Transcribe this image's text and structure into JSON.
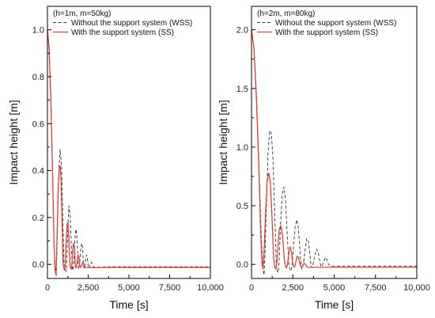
{
  "chart_data": [
    {
      "type": "line",
      "legend_title": "(h=1m, m=50kg)",
      "legend_position": "top-right",
      "xlabel": "Time [s]",
      "ylabel": "Impact height [m]",
      "xlim": [
        0,
        10000
      ],
      "ylim": [
        -0.06,
        1.1
      ],
      "xticks": [
        0,
        2500,
        5000,
        7500,
        10000
      ],
      "xtick_labels": [
        "0",
        "2,500",
        "5,000",
        "7,500",
        "10,000"
      ],
      "yticks": [
        0.0,
        0.2,
        0.4,
        0.6,
        0.8,
        1.0
      ],
      "ytick_labels": [
        "0.0",
        "0.2",
        "0.4",
        "0.6",
        "0.8",
        "1.0"
      ],
      "grid": false,
      "series": [
        {
          "name": "Without the support system (WSS)",
          "style": "dashed",
          "color": "#333333",
          "x": [
            0,
            100,
            200,
            300,
            400,
            500,
            540,
            580,
            620,
            700,
            780,
            860,
            940,
            1020,
            1100,
            1160,
            1200,
            1260,
            1320,
            1400,
            1480,
            1540,
            1580,
            1620,
            1680,
            1740,
            1800,
            1860,
            1900,
            1940,
            1980,
            2040,
            2100,
            2160,
            2200,
            2240,
            2280,
            2340,
            2400,
            2460,
            2500,
            2540,
            2580,
            2640,
            2700,
            2760,
            2800,
            2900,
            3000,
            3200,
            4000,
            10000
          ],
          "y": [
            1.0,
            0.93,
            0.74,
            0.45,
            0.08,
            -0.04,
            -0.05,
            0.05,
            0.2,
            0.4,
            0.49,
            0.42,
            0.2,
            0.0,
            -0.02,
            -0.03,
            0.04,
            0.17,
            0.25,
            0.2,
            0.05,
            -0.02,
            -0.025,
            0.02,
            0.1,
            0.15,
            0.13,
            0.04,
            -0.015,
            -0.02,
            0.01,
            0.06,
            0.09,
            0.07,
            0.01,
            -0.015,
            -0.018,
            0.02,
            0.04,
            0.02,
            -0.01,
            -0.015,
            -0.012,
            0.005,
            0.01,
            0.0,
            -0.01,
            -0.012,
            -0.012,
            -0.012,
            -0.01,
            -0.01
          ]
        },
        {
          "name": "With the support system (SS)",
          "style": "solid",
          "color": "#e0403a",
          "x": [
            0,
            100,
            200,
            300,
            400,
            460,
            520,
            560,
            600,
            660,
            720,
            780,
            840,
            900,
            960,
            1020,
            1060,
            1100,
            1140,
            1200,
            1260,
            1320,
            1380,
            1420,
            1460,
            1500,
            1540,
            1600,
            1660,
            1700,
            1740,
            1780,
            1820,
            1880,
            1940,
            1980,
            2020,
            2060,
            2120,
            2180,
            2240,
            2300,
            2400,
            2600,
            3000,
            4000,
            10000
          ],
          "y": [
            1.0,
            0.92,
            0.72,
            0.43,
            0.1,
            -0.02,
            -0.045,
            0.03,
            0.15,
            0.32,
            0.41,
            0.42,
            0.35,
            0.17,
            0.0,
            -0.02,
            -0.025,
            0.01,
            0.08,
            0.17,
            0.18,
            0.1,
            0.0,
            -0.015,
            -0.02,
            0.0,
            0.05,
            0.09,
            0.07,
            0.0,
            -0.015,
            -0.015,
            0.01,
            0.04,
            0.03,
            -0.005,
            -0.012,
            -0.012,
            0.0,
            0.01,
            -0.005,
            -0.012,
            -0.014,
            -0.014,
            -0.014,
            -0.013,
            -0.013
          ]
        }
      ]
    },
    {
      "type": "line",
      "legend_title": "(h=2m, m=80kg)",
      "legend_position": "top-right",
      "xlabel": "Time [s]",
      "ylabel": "Impact height [m]",
      "xlim": [
        0,
        10000
      ],
      "ylim": [
        -0.12,
        2.2
      ],
      "xticks": [
        0,
        2500,
        5000,
        7500,
        10000
      ],
      "xtick_labels": [
        "0",
        "2,500",
        "5,000",
        "7,500",
        "10,000"
      ],
      "yticks": [
        0.0,
        0.5,
        1.0,
        1.5,
        2.0
      ],
      "ytick_labels": [
        "0.0",
        "0.5",
        "1.0",
        "1.5",
        "2.0"
      ],
      "grid": false,
      "series": [
        {
          "name": "Without the support system (WSS)",
          "style": "dashed",
          "color": "#333333",
          "x": [
            0,
            150,
            300,
            450,
            600,
            700,
            760,
            820,
            900,
            1000,
            1100,
            1200,
            1300,
            1400,
            1500,
            1560,
            1620,
            1680,
            1760,
            1860,
            1960,
            2060,
            2160,
            2260,
            2340,
            2400,
            2460,
            2540,
            2640,
            2740,
            2840,
            2940,
            3000,
            3060,
            3140,
            3240,
            3340,
            3440,
            3540,
            3600,
            3660,
            3740,
            3840,
            3940,
            4040,
            4140,
            4200,
            4260,
            4360,
            4460,
            4560,
            4660,
            4760,
            4860,
            5000,
            6000,
            10000
          ],
          "y": [
            2.0,
            1.85,
            1.45,
            0.85,
            0.2,
            -0.05,
            -0.09,
            0.1,
            0.5,
            0.95,
            1.14,
            1.12,
            0.9,
            0.45,
            0.0,
            -0.06,
            -0.07,
            0.05,
            0.35,
            0.6,
            0.66,
            0.55,
            0.25,
            0.0,
            -0.05,
            -0.055,
            0.0,
            0.15,
            0.32,
            0.38,
            0.3,
            0.1,
            -0.02,
            -0.04,
            0.0,
            0.12,
            0.22,
            0.2,
            0.08,
            -0.01,
            -0.03,
            0.01,
            0.08,
            0.13,
            0.1,
            0.02,
            -0.015,
            -0.02,
            0.02,
            0.06,
            0.04,
            0.0,
            -0.01,
            -0.015,
            -0.015,
            -0.015,
            -0.015
          ]
        },
        {
          "name": "With the support system (SS)",
          "style": "solid",
          "color": "#e0403a",
          "x": [
            0,
            150,
            300,
            450,
            560,
            640,
            700,
            760,
            840,
            940,
            1040,
            1140,
            1240,
            1340,
            1420,
            1480,
            1540,
            1600,
            1680,
            1780,
            1880,
            1980,
            2060,
            2120,
            2180,
            2260,
            2340,
            2420,
            2500,
            2560,
            2620,
            2680,
            2760,
            2840,
            2920,
            2980,
            3040,
            3100,
            3180,
            3260,
            3340,
            3400,
            3500,
            3700,
            4200,
            10000
          ],
          "y": [
            2.0,
            1.84,
            1.4,
            0.8,
            0.25,
            0.0,
            -0.04,
            0.1,
            0.4,
            0.7,
            0.78,
            0.7,
            0.4,
            0.05,
            -0.03,
            -0.04,
            0.02,
            0.15,
            0.3,
            0.33,
            0.25,
            0.05,
            -0.02,
            -0.03,
            0.0,
            0.1,
            0.15,
            0.1,
            0.0,
            -0.02,
            -0.02,
            0.02,
            0.07,
            0.06,
            0.01,
            -0.02,
            -0.025,
            -0.01,
            0.01,
            0.0,
            -0.02,
            -0.025,
            -0.025,
            -0.025,
            -0.025,
            -0.025
          ]
        }
      ]
    }
  ]
}
